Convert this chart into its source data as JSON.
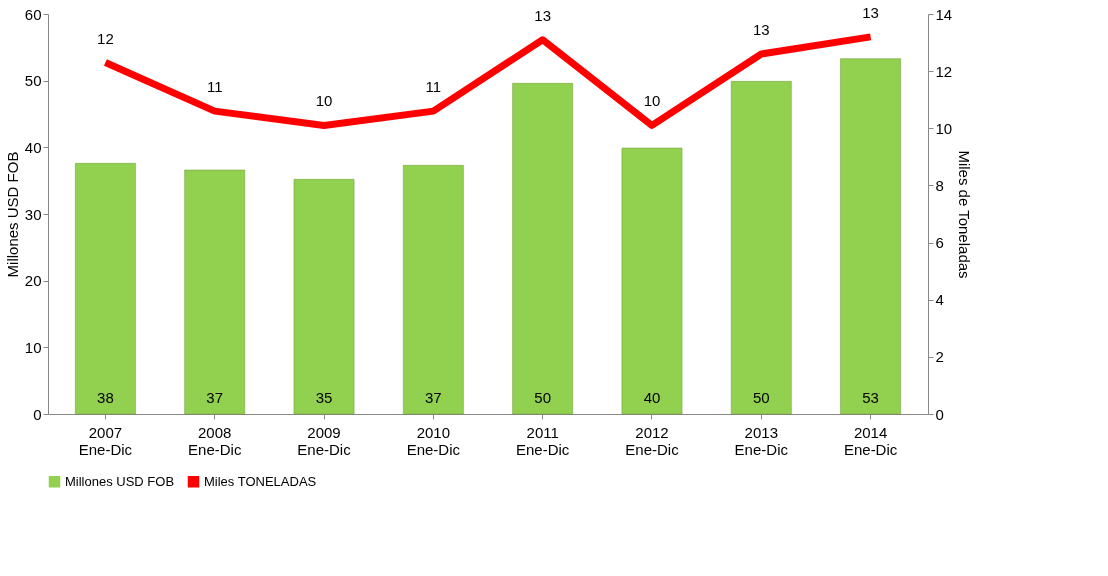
{
  "chart_data": {
    "type": "bar",
    "categories": [
      "2007\nEne-Dic",
      "2008\nEne-Dic",
      "2009\nEne-Dic",
      "2010\nEne-Dic",
      "2011\nEne-Dic",
      "2012\nEne-Dic",
      "2013\nEne-Dic",
      "2014\nEne-Dic"
    ],
    "ylabel": "Millones USD FOB",
    "y2label": "Miles  de  Toneladas",
    "ylim": [
      0,
      60
    ],
    "yticks": [
      0,
      10,
      20,
      30,
      40,
      50,
      60
    ],
    "y2lim": [
      0,
      14
    ],
    "y2ticks": [
      0,
      2,
      4,
      6,
      8,
      10,
      12,
      14
    ],
    "series": [
      {
        "name": "Millones USD FOB",
        "color": "#92d050",
        "values": [
          37.6,
          36.6,
          35.2,
          37.3,
          49.6,
          39.9,
          49.9,
          53.3
        ],
        "value_labels": [
          "38",
          "37",
          "35",
          "37",
          "50",
          "40",
          "50",
          "53"
        ]
      },
      {
        "name": "Miles TONELADAS",
        "type": "line",
        "axis": "y2",
        "color": "#ff0000",
        "values": [
          12.3,
          10.6,
          10.1,
          10.6,
          13.1,
          10.1,
          12.6,
          13.2
        ],
        "value_labels": [
          "12",
          "11",
          "10",
          "11",
          "13",
          "10",
          "13",
          "13"
        ]
      }
    ],
    "legend": "bottom",
    "grid": false,
    "marker": "none",
    "line_style": "solid"
  }
}
